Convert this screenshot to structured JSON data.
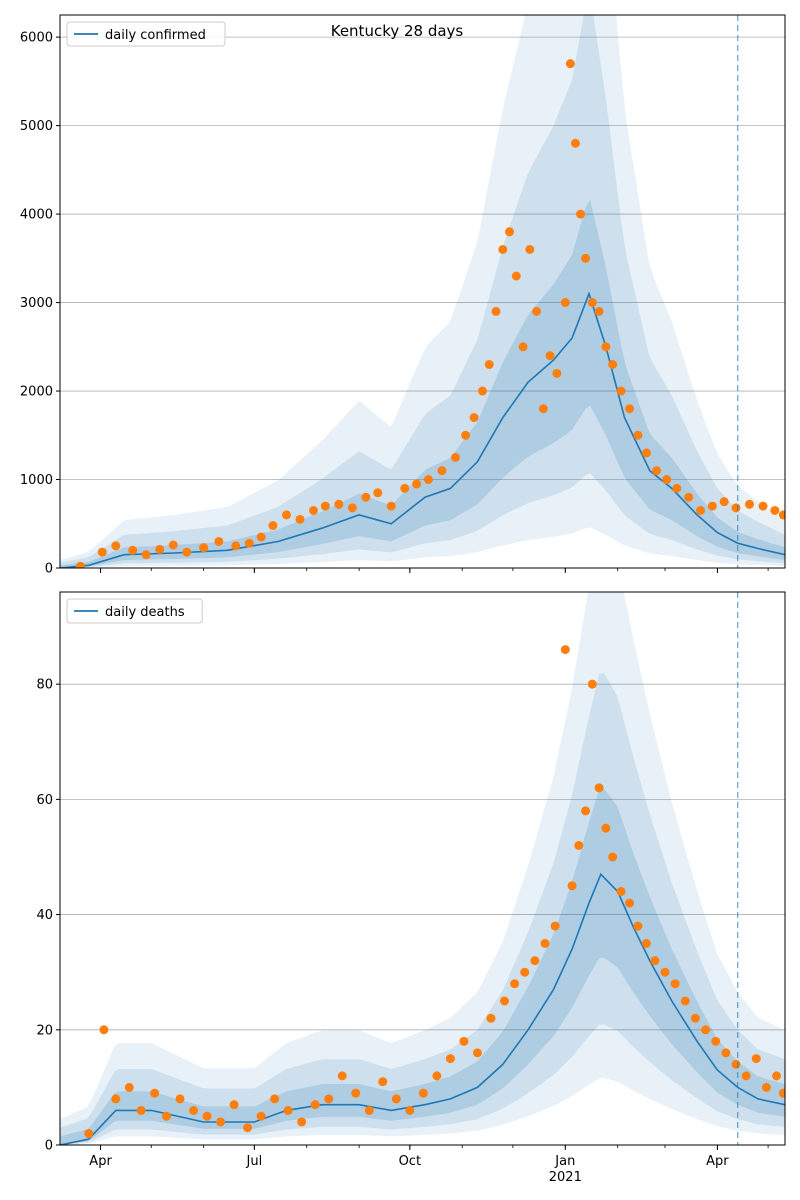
{
  "figure": {
    "title": "Kentucky 28 days"
  },
  "colors": {
    "model_line": "#1f77b4",
    "observed": "#ff7f0e",
    "band": "#1f77b4",
    "grid": "#b0b0b0",
    "forecast_line": "#1f77b4"
  },
  "x_axis": {
    "date_range": [
      "2020-03-08",
      "2021-05-11"
    ],
    "tick_labels": [
      {
        "date": "2020-04-01",
        "label": "Apr"
      },
      {
        "date": "2020-07-01",
        "label": "Jul"
      },
      {
        "date": "2020-10-01",
        "label": "Oct"
      },
      {
        "date": "2021-01-01",
        "label": "Jan"
      },
      {
        "date": "2021-04-01",
        "label": "Apr"
      }
    ],
    "year_label": {
      "date": "2021-01-01",
      "label": "2021"
    },
    "forecast_start": "2021-04-13"
  },
  "chart_data": [
    {
      "type": "line",
      "title": "Kentucky 28 days",
      "legend": "top-left",
      "grid": "horizontal",
      "ylim": [
        0,
        6250
      ],
      "yticks": [
        0,
        1000,
        2000,
        3000,
        4000,
        5000,
        6000
      ],
      "series": [
        {
          "name": "daily confirmed",
          "kind": "line",
          "x": [
            "2020-03-08",
            "2020-03-25",
            "2020-04-15",
            "2020-05-15",
            "2020-06-15",
            "2020-07-15",
            "2020-08-10",
            "2020-09-01",
            "2020-09-20",
            "2020-10-10",
            "2020-10-25",
            "2020-11-10",
            "2020-11-25",
            "2020-12-10",
            "2020-12-25",
            "2021-01-05",
            "2021-01-15",
            "2021-01-25",
            "2021-02-05",
            "2021-02-20",
            "2021-03-05",
            "2021-03-20",
            "2021-04-01",
            "2021-04-13",
            "2021-04-25",
            "2021-05-11"
          ],
          "y": [
            0,
            30,
            150,
            170,
            200,
            300,
            450,
            600,
            500,
            800,
            900,
            1200,
            1700,
            2100,
            2350,
            2600,
            3100,
            2500,
            1700,
            1100,
            900,
            600,
            400,
            280,
            220,
            150
          ]
        },
        {
          "name": "",
          "kind": "scatter",
          "x": [
            "2020-03-20",
            "2020-04-02",
            "2020-04-10",
            "2020-04-20",
            "2020-04-28",
            "2020-05-06",
            "2020-05-14",
            "2020-05-22",
            "2020-06-01",
            "2020-06-10",
            "2020-06-20",
            "2020-06-28",
            "2020-07-05",
            "2020-07-12",
            "2020-07-20",
            "2020-07-28",
            "2020-08-05",
            "2020-08-12",
            "2020-08-20",
            "2020-08-28",
            "2020-09-05",
            "2020-09-12",
            "2020-09-20",
            "2020-09-28",
            "2020-10-05",
            "2020-10-12",
            "2020-10-20",
            "2020-10-28",
            "2020-11-03",
            "2020-11-08",
            "2020-11-13",
            "2020-11-17",
            "2020-11-21",
            "2020-11-25",
            "2020-11-29",
            "2020-12-03",
            "2020-12-07",
            "2020-12-11",
            "2020-12-15",
            "2020-12-19",
            "2020-12-23",
            "2020-12-27",
            "2021-01-01",
            "2021-01-04",
            "2021-01-07",
            "2021-01-10",
            "2021-01-13",
            "2021-01-17",
            "2021-01-21",
            "2021-01-25",
            "2021-01-29",
            "2021-02-03",
            "2021-02-08",
            "2021-02-13",
            "2021-02-18",
            "2021-02-24",
            "2021-03-02",
            "2021-03-08",
            "2021-03-15",
            "2021-03-22",
            "2021-03-29",
            "2021-04-05",
            "2021-04-12",
            "2021-04-20",
            "2021-04-28",
            "2021-05-05",
            "2021-05-10"
          ],
          "y": [
            20,
            180,
            250,
            200,
            150,
            210,
            260,
            180,
            230,
            300,
            250,
            280,
            350,
            480,
            600,
            550,
            650,
            700,
            720,
            680,
            800,
            850,
            700,
            900,
            950,
            1000,
            1100,
            1250,
            1500,
            1700,
            2000,
            2300,
            2900,
            3600,
            3800,
            3300,
            2500,
            3600,
            2900,
            1800,
            2400,
            2200,
            3000,
            5700,
            4800,
            4000,
            3500,
            3000,
            2900,
            2500,
            2300,
            2000,
            1800,
            1500,
            1300,
            1100,
            1000,
            900,
            800,
            650,
            700,
            750,
            680,
            720,
            700,
            650,
            600
          ]
        }
      ]
    },
    {
      "type": "line",
      "legend": "top-left",
      "grid": "horizontal",
      "ylim": [
        0,
        96
      ],
      "yticks": [
        0,
        20,
        40,
        60,
        80
      ],
      "series": [
        {
          "name": "daily deaths",
          "kind": "line",
          "x": [
            "2020-03-08",
            "2020-03-25",
            "2020-04-10",
            "2020-05-01",
            "2020-06-01",
            "2020-07-01",
            "2020-07-20",
            "2020-08-10",
            "2020-09-01",
            "2020-09-20",
            "2020-10-10",
            "2020-10-25",
            "2020-11-10",
            "2020-11-25",
            "2020-12-10",
            "2020-12-25",
            "2021-01-05",
            "2021-01-15",
            "2021-01-22",
            "2021-02-01",
            "2021-02-10",
            "2021-02-20",
            "2021-03-05",
            "2021-03-20",
            "2021-04-01",
            "2021-04-13",
            "2021-04-25",
            "2021-05-11"
          ],
          "y": [
            0,
            1,
            6,
            6,
            4,
            4,
            6,
            7,
            7,
            6,
            7,
            8,
            10,
            14,
            20,
            27,
            34,
            42,
            47,
            44,
            38,
            32,
            25,
            18,
            13,
            10,
            8,
            7
          ]
        },
        {
          "name": "",
          "kind": "scatter",
          "x": [
            "2020-03-25",
            "2020-04-03",
            "2020-04-10",
            "2020-04-18",
            "2020-04-25",
            "2020-05-03",
            "2020-05-10",
            "2020-05-18",
            "2020-05-26",
            "2020-06-03",
            "2020-06-11",
            "2020-06-19",
            "2020-06-27",
            "2020-07-05",
            "2020-07-13",
            "2020-07-21",
            "2020-07-29",
            "2020-08-06",
            "2020-08-14",
            "2020-08-22",
            "2020-08-30",
            "2020-09-07",
            "2020-09-15",
            "2020-09-23",
            "2020-10-01",
            "2020-10-09",
            "2020-10-17",
            "2020-10-25",
            "2020-11-02",
            "2020-11-10",
            "2020-11-18",
            "2020-11-26",
            "2020-12-02",
            "2020-12-08",
            "2020-12-14",
            "2020-12-20",
            "2020-12-26",
            "2021-01-01",
            "2021-01-05",
            "2021-01-09",
            "2021-01-13",
            "2021-01-17",
            "2021-01-21",
            "2021-01-25",
            "2021-01-29",
            "2021-02-03",
            "2021-02-08",
            "2021-02-13",
            "2021-02-18",
            "2021-02-23",
            "2021-03-01",
            "2021-03-07",
            "2021-03-13",
            "2021-03-19",
            "2021-03-25",
            "2021-03-31",
            "2021-04-06",
            "2021-04-12",
            "2021-04-18",
            "2021-04-24",
            "2021-04-30",
            "2021-05-06",
            "2021-05-10"
          ],
          "y": [
            2,
            20,
            8,
            10,
            6,
            9,
            5,
            8,
            6,
            5,
            4,
            7,
            3,
            5,
            8,
            6,
            4,
            7,
            8,
            12,
            9,
            6,
            11,
            8,
            6,
            9,
            12,
            15,
            18,
            16,
            22,
            25,
            28,
            30,
            32,
            35,
            38,
            86,
            45,
            52,
            58,
            80,
            62,
            55,
            50,
            44,
            42,
            38,
            35,
            32,
            30,
            28,
            25,
            22,
            20,
            18,
            16,
            14,
            12,
            15,
            10,
            12,
            9
          ]
        }
      ]
    }
  ]
}
